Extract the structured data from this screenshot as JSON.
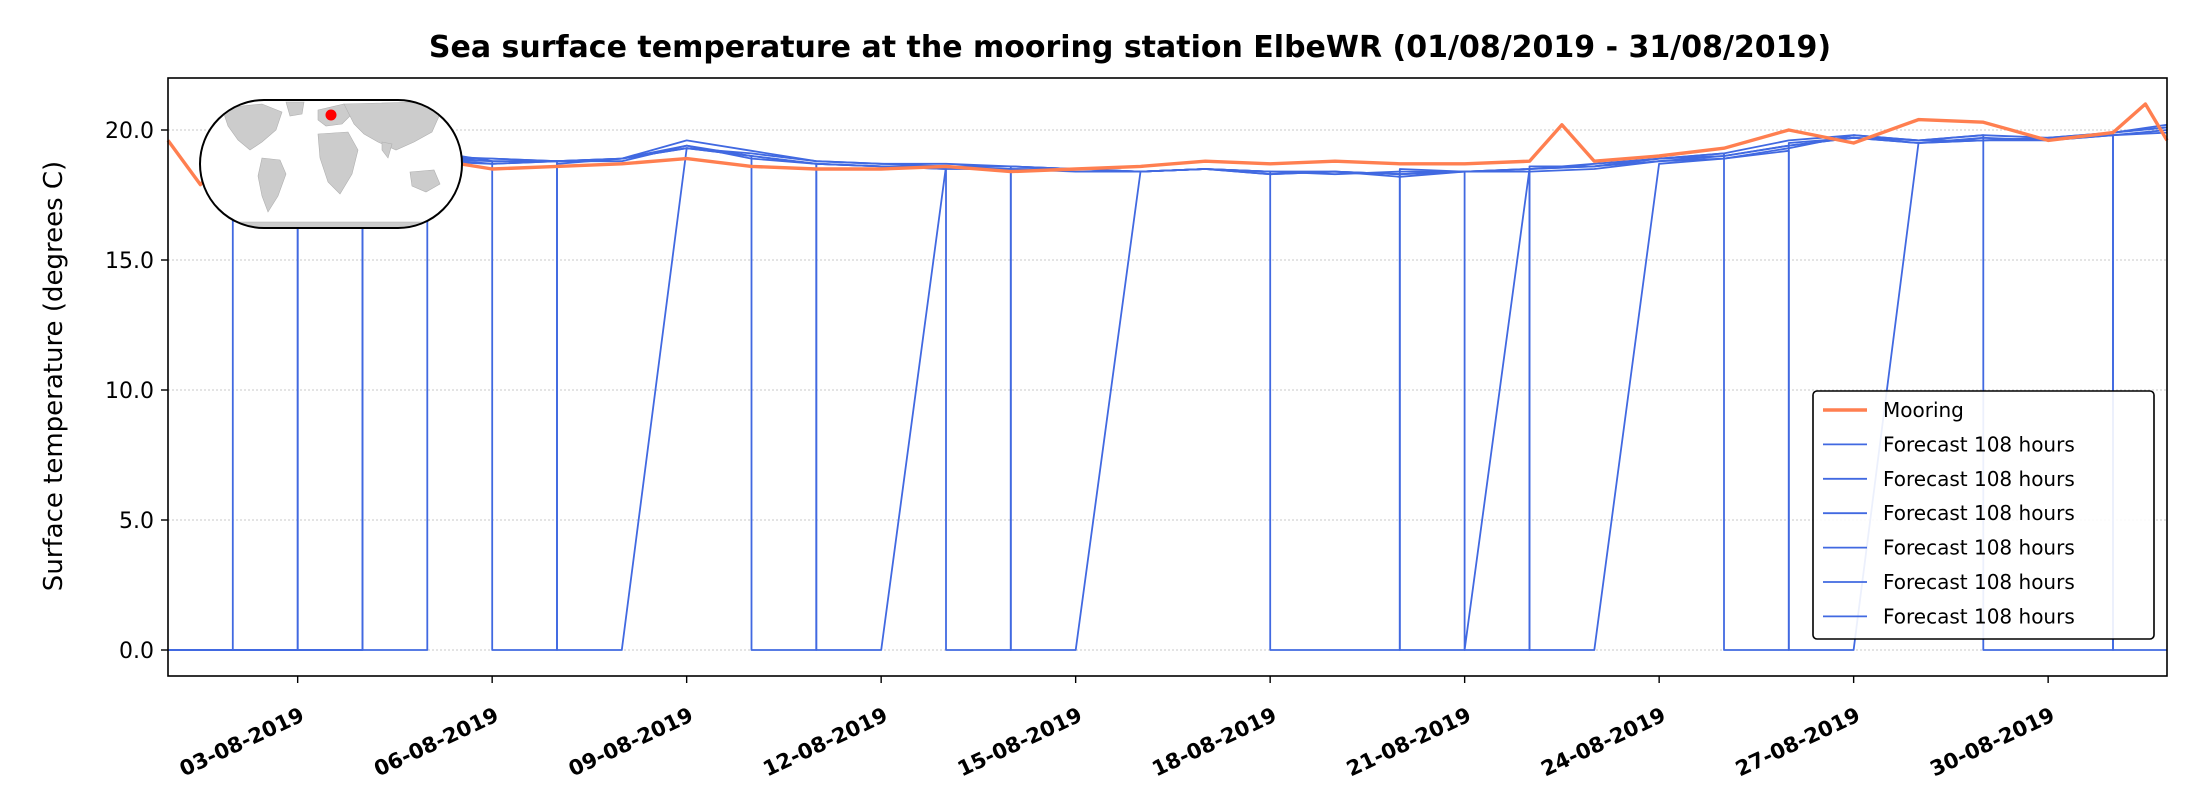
{
  "chart_data": {
    "type": "line",
    "title": "Sea surface temperature at the mooring station ElbeWR (01/08/2019 - 31/08/2019)",
    "ylabel": "Surface temperature (degrees C)",
    "xlabel": "",
    "x_range": [
      "2019-08-01",
      "2019-08-31T20:00"
    ],
    "ylim": [
      -1.0,
      22.0
    ],
    "yticks": [
      0.0,
      5.0,
      10.0,
      15.0,
      20.0
    ],
    "ytick_labels": [
      "0.0",
      "5.0",
      "10.0",
      "15.0",
      "20.0"
    ],
    "xticks": [
      "2019-08-03",
      "2019-08-06",
      "2019-08-09",
      "2019-08-12",
      "2019-08-15",
      "2019-08-18",
      "2019-08-21",
      "2019-08-24",
      "2019-08-27",
      "2019-08-30"
    ],
    "xtick_labels": [
      "03-08-2019",
      "06-08-2019",
      "09-08-2019",
      "12-08-2019",
      "15-08-2019",
      "18-08-2019",
      "21-08-2019",
      "24-08-2019",
      "27-08-2019",
      "30-08-2019"
    ],
    "grid": "horizontal dotted",
    "legend_position": "lower-right",
    "inset": "world map with station marker (red dot, North Sea)",
    "colors": {
      "mooring": "#ff7f50",
      "forecast": "#4169e1",
      "inset_land": "#cccccc",
      "station_marker": "#ff0000"
    },
    "series": [
      {
        "name": "Mooring",
        "x": [
          "2019-08-01T00:00",
          "2019-08-01T12:00",
          "2019-08-02T00:00",
          "2019-08-03T00:00",
          "2019-08-04T00:00",
          "2019-08-05T00:00",
          "2019-08-06T00:00",
          "2019-08-07T00:00",
          "2019-08-08T00:00",
          "2019-08-09T00:00",
          "2019-08-10T00:00",
          "2019-08-11T00:00",
          "2019-08-12T00:00",
          "2019-08-13T00:00",
          "2019-08-14T00:00",
          "2019-08-15T00:00",
          "2019-08-16T00:00",
          "2019-08-17T00:00",
          "2019-08-18T00:00",
          "2019-08-19T00:00",
          "2019-08-20T00:00",
          "2019-08-21T00:00",
          "2019-08-22T00:00",
          "2019-08-22T12:00",
          "2019-08-23T00:00",
          "2019-08-24T00:00",
          "2019-08-25T00:00",
          "2019-08-26T00:00",
          "2019-08-27T00:00",
          "2019-08-28T00:00",
          "2019-08-29T00:00",
          "2019-08-30T00:00",
          "2019-08-31T00:00",
          "2019-08-31T12:00",
          "2019-08-31T20:00"
        ],
        "y": [
          19.6,
          17.9,
          19.2,
          19.0,
          18.9,
          18.9,
          18.5,
          18.6,
          18.7,
          18.9,
          18.6,
          18.5,
          18.5,
          18.6,
          18.4,
          18.5,
          18.6,
          18.8,
          18.7,
          18.8,
          18.7,
          18.7,
          18.8,
          20.2,
          18.8,
          19.0,
          19.3,
          20.0,
          19.5,
          20.4,
          20.3,
          19.6,
          19.9,
          21.0,
          19.6
        ]
      },
      {
        "name": "Forecast 108 hours",
        "x": [
          "2019-08-01T00:00",
          "2019-08-02T00:00",
          "2019-08-02T00:00",
          "2019-08-03T00:00",
          "2019-08-04T00:00",
          "2019-08-05T00:00",
          "2019-08-06T00:00",
          "2019-08-07T00:00",
          "2019-08-08T00:00",
          "2019-08-09T00:00",
          "2019-08-10T00:00",
          "2019-08-11T00:00",
          "2019-08-12T00:00",
          "2019-08-13T00:00",
          "2019-08-14T00:00",
          "2019-08-15T00:00",
          "2019-08-16T00:00",
          "2019-08-17T00:00",
          "2019-08-18T00:00",
          "2019-08-19T00:00",
          "2019-08-20T00:00",
          "2019-08-21T00:00",
          "2019-08-22T00:00",
          "2019-08-23T00:00",
          "2019-08-24T00:00",
          "2019-08-25T00:00",
          "2019-08-26T00:00",
          "2019-08-27T00:00",
          "2019-08-28T00:00",
          "2019-08-29T00:00",
          "2019-08-30T00:00",
          "2019-08-31T00:00",
          "2019-08-31T20:00"
        ],
        "y": [
          0.0,
          0.0,
          18.7,
          18.9,
          18.8,
          18.9,
          18.8,
          18.8,
          18.8,
          19.4,
          18.9,
          18.7,
          18.6,
          18.5,
          18.5,
          18.4,
          18.4,
          18.5,
          18.3,
          18.4,
          18.2,
          18.4,
          18.4,
          18.5,
          18.8,
          18.9,
          19.3,
          19.8,
          19.6,
          19.8,
          19.7,
          19.9,
          20.1
        ]
      },
      {
        "name": "Forecast 108 hours",
        "x": [
          "2019-08-01T00:00",
          "2019-08-03T00:00",
          "2019-08-03T00:00",
          "2019-08-04T00:00",
          "2019-08-05T00:00",
          "2019-08-06T00:00",
          "2019-08-07T00:00",
          "2019-08-08T00:00",
          "2019-08-09T00:00",
          "2019-08-10T00:00",
          "2019-08-11T00:00",
          "2019-08-12T00:00",
          "2019-08-13T00:00",
          "2019-08-14T00:00",
          "2019-08-15T00:00",
          "2019-08-16T00:00",
          "2019-08-17T00:00",
          "2019-08-18T00:00",
          "2019-08-19T00:00",
          "2019-08-20T00:00",
          "2019-08-21T00:00",
          "2019-08-22T00:00",
          "2019-08-23T00:00",
          "2019-08-24T00:00",
          "2019-08-25T00:00",
          "2019-08-26T00:00",
          "2019-08-27T00:00",
          "2019-08-28T00:00",
          "2019-08-29T00:00",
          "2019-08-30T00:00",
          "2019-08-31T00:00",
          "2019-08-31T20:00"
        ],
        "y": [
          0.0,
          0.0,
          18.9,
          19.0,
          18.9,
          18.9,
          18.8,
          18.9,
          19.3,
          19.1,
          18.8,
          18.7,
          18.6,
          18.6,
          18.5,
          18.4,
          18.5,
          18.4,
          18.4,
          18.3,
          18.4,
          18.5,
          18.6,
          18.9,
          19.0,
          19.4,
          19.7,
          19.5,
          19.7,
          19.6,
          19.8,
          20.0
        ]
      },
      {
        "name": "Forecast 108 hours",
        "x": [
          "2019-08-01T00:00",
          "2019-08-04T00:00",
          "2019-08-04T00:00",
          "2019-08-05T00:00",
          "2019-08-06T00:00",
          "2019-08-07T00:00",
          "2019-08-08T00:00",
          "2019-08-09T00:00",
          "2019-08-10T00:00",
          "2019-08-11T00:00",
          "2019-08-12T00:00",
          "2019-08-13T00:00",
          "2019-08-14T00:00",
          "2019-08-15T00:00",
          "2019-08-16T00:00",
          "2019-08-17T00:00",
          "2019-08-18T00:00",
          "2019-08-19T00:00",
          "2019-08-20T00:00",
          "2019-08-21T00:00",
          "2019-08-22T00:00",
          "2019-08-23T00:00",
          "2019-08-24T00:00",
          "2019-08-25T00:00",
          "2019-08-26T00:00",
          "2019-08-27T00:00",
          "2019-08-28T00:00",
          "2019-08-29T00:00",
          "2019-08-30T00:00",
          "2019-08-31T00:00",
          "2019-08-31T20:00"
        ],
        "y": [
          0.0,
          0.0,
          18.9,
          19.0,
          18.9,
          18.8,
          18.9,
          19.6,
          19.2,
          18.8,
          18.7,
          18.7,
          18.6,
          18.5,
          18.4,
          18.5,
          18.4,
          18.3,
          18.4,
          18.4,
          18.5,
          18.7,
          18.9,
          19.1,
          19.6,
          19.8,
          19.6,
          19.6,
          19.7,
          19.9,
          20.2
        ]
      },
      {
        "name": "Forecast 108 hours",
        "x": [
          "2019-08-01T00:00",
          "2019-08-05T00:00",
          "2019-08-05T00:00",
          "2019-08-06T00:00",
          "2019-08-06T00:00",
          "2019-08-07T00:00",
          "2019-08-07T00:00",
          "2019-08-08T00:00",
          "2019-08-09T00:00",
          "2019-08-10T00:00",
          "2019-08-10T00:00",
          "2019-08-11T00:00",
          "2019-08-11T00:00",
          "2019-08-12T00:00",
          "2019-08-13T00:00",
          "2019-08-13T00:00",
          "2019-08-14T00:00",
          "2019-08-14T00:00",
          "2019-08-15T00:00",
          "2019-08-16T00:00",
          "2019-08-17T00:00",
          "2019-08-18T00:00",
          "2019-08-18T00:00",
          "2019-08-20T00:00",
          "2019-08-20T00:00",
          "2019-08-21T00:00",
          "2019-08-21T00:00",
          "2019-08-22T00:00",
          "2019-08-22T00:00",
          "2019-08-23T00:00",
          "2019-08-24T00:00",
          "2019-08-25T00:00",
          "2019-08-25T00:00",
          "2019-08-26T00:00",
          "2019-08-26T00:00",
          "2019-08-27T00:00",
          "2019-08-28T00:00",
          "2019-08-29T00:00",
          "2019-08-29T00:00",
          "2019-08-31T00:00",
          "2019-08-31T00:00",
          "2019-08-31T20:00"
        ],
        "y": [
          0.0,
          0.0,
          19.2,
          18.8,
          0.0,
          0.0,
          18.7,
          18.9,
          19.4,
          19.0,
          0.0,
          0.0,
          18.7,
          18.6,
          18.5,
          0.0,
          0.0,
          18.6,
          18.5,
          18.4,
          18.5,
          18.4,
          0.0,
          0.0,
          18.5,
          18.4,
          0.0,
          0.0,
          18.6,
          18.6,
          18.9,
          19.1,
          0.0,
          0.0,
          19.5,
          19.7,
          19.6,
          19.8,
          0.0,
          0.0,
          19.9,
          20.1
        ]
      },
      {
        "name": "Forecast 108 hours",
        "x": [
          "2019-08-01T00:00",
          "2019-08-03T00:00",
          "2019-08-03T00:00",
          "2019-08-04T00:00",
          "2019-08-05T00:00",
          "2019-08-06T00:00",
          "2019-08-07T00:00",
          "2019-08-07T00:00",
          "2019-08-08T00:00",
          "2019-08-09T00:00",
          "2019-08-10T00:00",
          "2019-08-11T00:00",
          "2019-08-11T00:00",
          "2019-08-12T00:00",
          "2019-08-13T00:00",
          "2019-08-14T00:00",
          "2019-08-14T00:00",
          "2019-08-15T00:00",
          "2019-08-16T00:00",
          "2019-08-17T00:00",
          "2019-08-18T00:00",
          "2019-08-19T00:00",
          "2019-08-20T00:00",
          "2019-08-20T00:00",
          "2019-08-21T00:00",
          "2019-08-22T00:00",
          "2019-08-22T00:00",
          "2019-08-23T00:00",
          "2019-08-24T00:00",
          "2019-08-25T00:00",
          "2019-08-26T00:00",
          "2019-08-26T00:00",
          "2019-08-27T00:00",
          "2019-08-28T00:00",
          "2019-08-29T00:00",
          "2019-08-30T00:00",
          "2019-08-31T00:00",
          "2019-08-31T00:00",
          "2019-08-31T20:00"
        ],
        "y": [
          0.0,
          0.0,
          18.6,
          18.9,
          18.8,
          18.7,
          18.8,
          0.0,
          0.0,
          19.3,
          19.0,
          18.7,
          0.0,
          0.0,
          18.6,
          18.5,
          0.0,
          0.0,
          18.4,
          18.5,
          18.3,
          18.4,
          18.3,
          0.0,
          0.0,
          18.5,
          0.0,
          0.0,
          18.7,
          18.9,
          19.2,
          0.0,
          0.0,
          19.5,
          19.6,
          19.7,
          19.8,
          0.0,
          0.0
        ]
      },
      {
        "name": "Forecast 108 hours",
        "x": [
          "2019-08-01T00:00",
          "2019-08-04T00:00",
          "2019-08-04T00:00",
          "2019-08-05T00:00",
          "2019-08-06T00:00",
          "2019-08-07T00:00",
          "2019-08-08T00:00",
          "2019-08-09T00:00",
          "2019-08-10T00:00",
          "2019-08-11T00:00",
          "2019-08-12T00:00",
          "2019-08-13T00:00",
          "2019-08-14T00:00",
          "2019-08-15T00:00",
          "2019-08-16T00:00",
          "2019-08-17T00:00",
          "2019-08-18T00:00",
          "2019-08-19T00:00",
          "2019-08-20T00:00",
          "2019-08-21T00:00",
          "2019-08-22T00:00",
          "2019-08-23T00:00",
          "2019-08-24T00:00",
          "2019-08-25T00:00",
          "2019-08-26T00:00",
          "2019-08-27T00:00",
          "2019-08-28T00:00",
          "2019-08-29T00:00",
          "2019-08-30T00:00",
          "2019-08-31T00:00",
          "2019-08-31T20:00"
        ],
        "y": [
          0.0,
          0.0,
          18.8,
          18.9,
          18.7,
          18.8,
          18.9,
          19.3,
          19.0,
          18.7,
          18.6,
          18.6,
          18.5,
          18.5,
          18.4,
          18.5,
          18.4,
          18.4,
          18.3,
          18.4,
          18.5,
          18.6,
          18.8,
          19.0,
          19.4,
          19.7,
          19.5,
          19.6,
          19.6,
          19.8,
          19.9
        ]
      }
    ]
  }
}
